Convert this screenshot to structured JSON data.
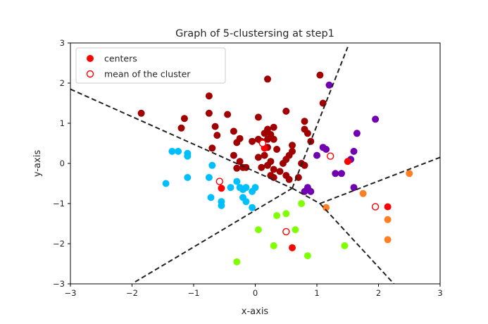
{
  "chart_data": {
    "type": "scatter",
    "title": "Graph of 5-clustersing at step1",
    "xlabel": "x-axis",
    "ylabel": "y-axis",
    "xlim": [
      -3,
      3
    ],
    "ylim": [
      -3,
      3
    ],
    "xticks": [
      -3,
      -2,
      -1,
      0,
      1,
      2,
      3
    ],
    "yticks": [
      -3,
      -2,
      -1,
      0,
      1,
      2,
      3
    ],
    "grid": false,
    "legend_position": "top-left",
    "legend": [
      {
        "label": "centers",
        "marker": "filled-circle",
        "color": "#ff0000"
      },
      {
        "label": "mean of the cluster",
        "marker": "hollow-circle",
        "color": "#ff0000"
      }
    ],
    "series": [
      {
        "color": "#a00000",
        "points": [
          [
            -1.85,
            1.25
          ],
          [
            -1.15,
            1.12
          ],
          [
            -1.2,
            0.88
          ],
          [
            -0.75,
            1.68
          ],
          [
            -0.75,
            1.25
          ],
          [
            -0.65,
            0.92
          ],
          [
            -0.62,
            0.7
          ],
          [
            -0.45,
            1.22
          ],
          [
            -0.35,
            0.8
          ],
          [
            -0.25,
            0.62
          ],
          [
            -0.3,
            0.52
          ],
          [
            -0.7,
            0.38
          ],
          [
            -0.35,
            0.2
          ],
          [
            -0.25,
            0.05
          ],
          [
            -0.15,
            -0.1
          ],
          [
            -0.3,
            -0.12
          ],
          [
            -0.2,
            -0.1
          ],
          [
            -0.05,
            0.55
          ],
          [
            0.05,
            0.6
          ],
          [
            0.1,
            0.55
          ],
          [
            0.15,
            0.75
          ],
          [
            0.2,
            0.85
          ],
          [
            0.25,
            0.72
          ],
          [
            0.2,
            0.6
          ],
          [
            0.3,
            0.9
          ],
          [
            0.3,
            0.6
          ],
          [
            0.35,
            0.35
          ],
          [
            0.2,
            0.4
          ],
          [
            0.15,
            0.2
          ],
          [
            0.05,
            0.15
          ],
          [
            0.1,
            -0.1
          ],
          [
            0.2,
            -0.05
          ],
          [
            0.25,
            0.05
          ],
          [
            0.3,
            -0.15
          ],
          [
            0.25,
            -0.3
          ],
          [
            0.3,
            -0.35
          ],
          [
            0.4,
            -0.2
          ],
          [
            0.45,
            0.0
          ],
          [
            0.5,
            0.1
          ],
          [
            0.55,
            0.2
          ],
          [
            0.6,
            0.3
          ],
          [
            0.6,
            0.45
          ],
          [
            0.5,
            -0.3
          ],
          [
            0.55,
            -0.4
          ],
          [
            0.7,
            -0.35
          ],
          [
            0.8,
            1.05
          ],
          [
            0.8,
            0.85
          ],
          [
            0.85,
            0.75
          ],
          [
            0.9,
            0.55
          ],
          [
            0.8,
            -0.05
          ],
          [
            0.75,
            0.0
          ],
          [
            0.5,
            1.3
          ],
          [
            0.2,
            2.1
          ],
          [
            0.05,
            1.15
          ],
          [
            1.05,
            2.2
          ],
          [
            1.1,
            1.5
          ],
          [
            0.15,
            0.4
          ]
        ]
      },
      {
        "color": "#00bfff",
        "points": [
          [
            -1.45,
            -0.5
          ],
          [
            -1.35,
            0.3
          ],
          [
            -1.25,
            0.3
          ],
          [
            -1.1,
            0.25
          ],
          [
            -1.1,
            0.18
          ],
          [
            -1.1,
            -0.35
          ],
          [
            -0.7,
            -0.05
          ],
          [
            -0.75,
            -0.35
          ],
          [
            -0.72,
            -0.85
          ],
          [
            -0.55,
            -0.95
          ],
          [
            -0.55,
            -1.05
          ],
          [
            -0.4,
            -0.6
          ],
          [
            -0.3,
            -0.45
          ],
          [
            -0.25,
            -0.6
          ],
          [
            -0.2,
            -0.65
          ],
          [
            -0.15,
            -0.6
          ],
          [
            -0.2,
            -0.85
          ],
          [
            -0.15,
            -0.95
          ],
          [
            -0.05,
            -1.1
          ],
          [
            -0.05,
            -0.7
          ],
          [
            0.0,
            -0.6
          ]
        ]
      },
      {
        "color": "#7fff00",
        "points": [
          [
            0.05,
            -1.65
          ],
          [
            -0.3,
            -2.45
          ],
          [
            0.35,
            -1.3
          ],
          [
            0.5,
            -1.25
          ],
          [
            0.75,
            -1.0
          ],
          [
            0.65,
            -1.65
          ],
          [
            0.3,
            -2.05
          ],
          [
            0.85,
            -2.3
          ],
          [
            1.45,
            -2.05
          ]
        ]
      },
      {
        "color": "#ff7f24",
        "points": [
          [
            1.15,
            -1.1
          ],
          [
            1.75,
            -0.75
          ],
          [
            2.5,
            -0.25
          ],
          [
            2.15,
            -1.4
          ],
          [
            2.15,
            -1.9
          ]
        ]
      },
      {
        "color": "#7000b0",
        "points": [
          [
            1.2,
            1.95
          ],
          [
            1.0,
            0.2
          ],
          [
            1.1,
            0.4
          ],
          [
            1.15,
            0.35
          ],
          [
            1.3,
            -0.25
          ],
          [
            1.4,
            -0.25
          ],
          [
            1.55,
            0.1
          ],
          [
            1.6,
            0.3
          ],
          [
            1.65,
            0.75
          ],
          [
            1.95,
            1.1
          ],
          [
            1.6,
            -0.6
          ],
          [
            0.85,
            -0.6
          ],
          [
            0.9,
            -0.7
          ],
          [
            0.8,
            -0.7
          ]
        ]
      }
    ],
    "centers": [
      [
        -0.55,
        -0.62
      ],
      [
        0.6,
        -2.1
      ],
      [
        1.5,
        0.05
      ],
      [
        2.15,
        -1.08
      ],
      [
        0.15,
        0.38
      ]
    ],
    "cluster_means": [
      [
        -0.58,
        -0.45
      ],
      [
        0.5,
        -1.7
      ],
      [
        1.22,
        0.18
      ],
      [
        1.95,
        -1.08
      ],
      [
        0.12,
        0.5
      ]
    ],
    "boundary_lines": [
      [
        [
          -3,
          1.85
        ],
        [
          0.6,
          -0.62
        ]
      ],
      [
        [
          0.6,
          -0.62
        ],
        [
          1.5,
          2.9
        ]
      ],
      [
        [
          0.6,
          -0.62
        ],
        [
          1.05,
          -1.0
        ]
      ],
      [
        [
          1.05,
          -1.0
        ],
        [
          3,
          0.15
        ]
      ],
      [
        [
          1.05,
          -1.0
        ],
        [
          2.25,
          -3
        ]
      ],
      [
        [
          0.6,
          -0.62
        ],
        [
          -1.95,
          -2.95
        ]
      ]
    ]
  }
}
